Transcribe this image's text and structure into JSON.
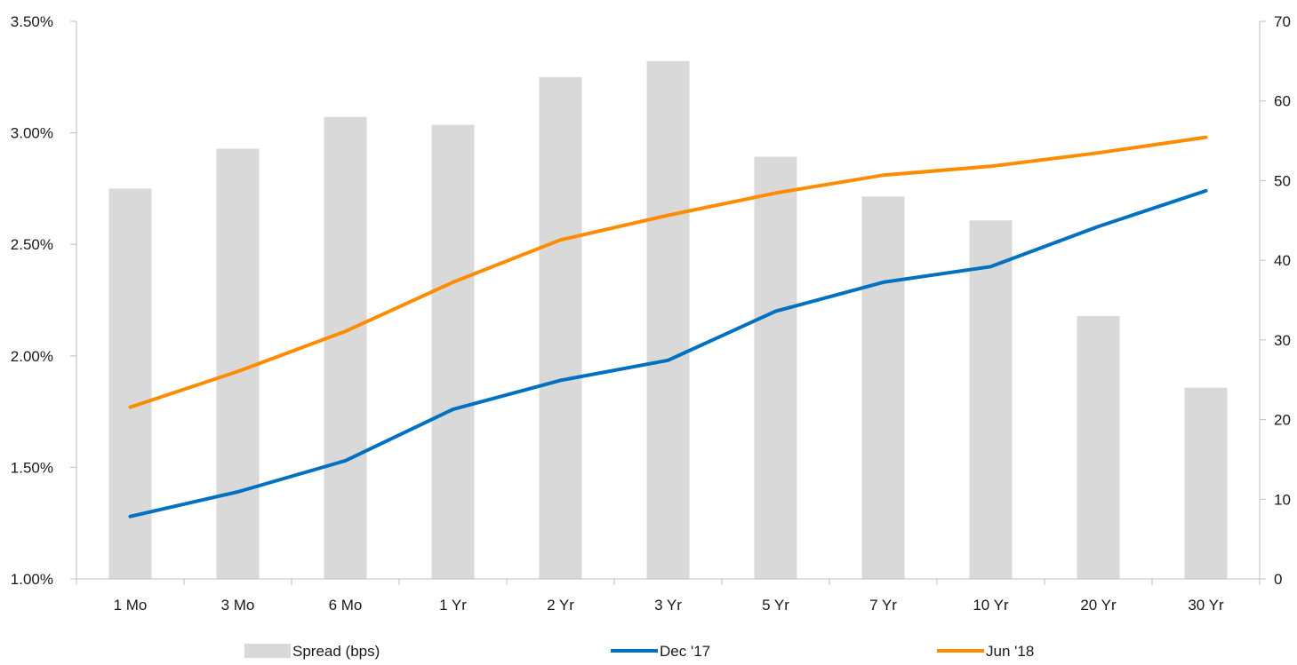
{
  "chart_data": {
    "type": "bar+line",
    "categories": [
      "1 Mo",
      "3 Mo",
      "6 Mo",
      "1 Yr",
      "2 Yr",
      "3 Yr",
      "5 Yr",
      "7 Yr",
      "10 Yr",
      "20 Yr",
      "30 Yr"
    ],
    "bar_series": {
      "name": "Spread (bps)",
      "axis": "right",
      "color": "#d9d9d9",
      "values": [
        49,
        54,
        58,
        57,
        63,
        65,
        53,
        48,
        45,
        33,
        24
      ]
    },
    "line_series": [
      {
        "name": "Dec '17",
        "axis": "left",
        "color": "#0070c0",
        "values": [
          1.28,
          1.39,
          1.53,
          1.76,
          1.89,
          1.98,
          2.2,
          2.33,
          2.4,
          2.58,
          2.74
        ]
      },
      {
        "name": "Jun '18",
        "axis": "left",
        "color": "#ff8c00",
        "values": [
          1.77,
          1.93,
          2.11,
          2.33,
          2.52,
          2.63,
          2.73,
          2.81,
          2.85,
          2.91,
          2.98
        ]
      }
    ],
    "y_left": {
      "min": 1.0,
      "max": 3.5,
      "ticks": [
        1.0,
        1.5,
        2.0,
        2.5,
        3.0,
        3.5
      ],
      "tick_labels": [
        "1.00%",
        "1.50%",
        "2.00%",
        "2.50%",
        "3.00%",
        "3.50%"
      ]
    },
    "y_right": {
      "min": 0,
      "max": 70,
      "ticks": [
        0,
        10,
        20,
        30,
        40,
        50,
        60,
        70
      ],
      "tick_labels": [
        "0",
        "10",
        "20",
        "30",
        "40",
        "50",
        "60",
        "70"
      ]
    },
    "grid": false,
    "legend_position": "bottom"
  }
}
